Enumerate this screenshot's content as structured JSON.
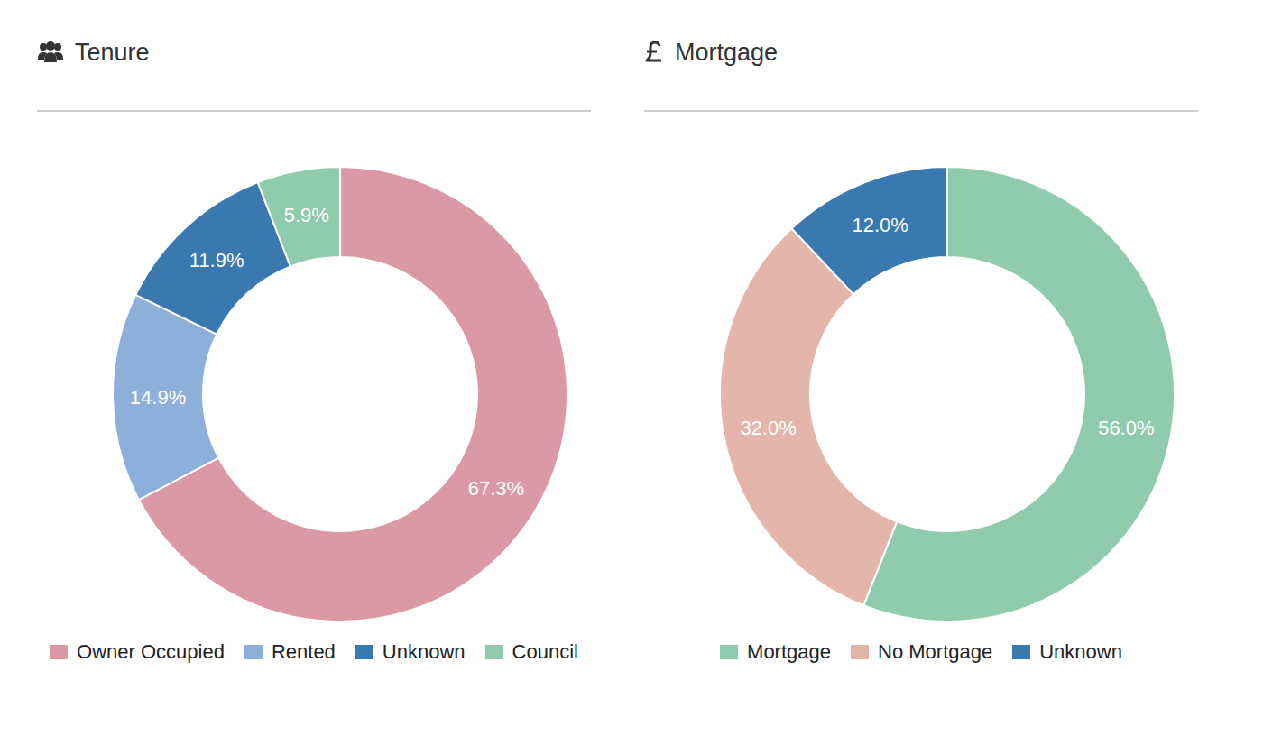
{
  "chart_data": [
    {
      "type": "pie",
      "title": "Tenure",
      "categories": [
        "Owner Occupied",
        "Rented",
        "Unknown",
        "Council"
      ],
      "values": [
        67.3,
        14.9,
        11.9,
        5.9
      ],
      "value_labels": [
        "67.3%",
        "14.9%",
        "11.9%",
        "5.9%"
      ],
      "colors": [
        "#db99a5",
        "#8cb0d9",
        "#3a78b0",
        "#90cbad"
      ],
      "data_labels": true,
      "legend": "bottom"
    },
    {
      "type": "pie",
      "title": "Mortgage",
      "categories": [
        "Mortgage",
        "No Mortgage",
        "Unknown"
      ],
      "values": [
        56.0,
        32.0,
        12.0
      ],
      "value_labels": [
        "56.0%",
        "32.0%",
        "12.0%"
      ],
      "colors": [
        "#90cbad",
        "#e4b5aa",
        "#3a78b0"
      ],
      "data_labels": true,
      "legend": "bottom"
    }
  ]
}
